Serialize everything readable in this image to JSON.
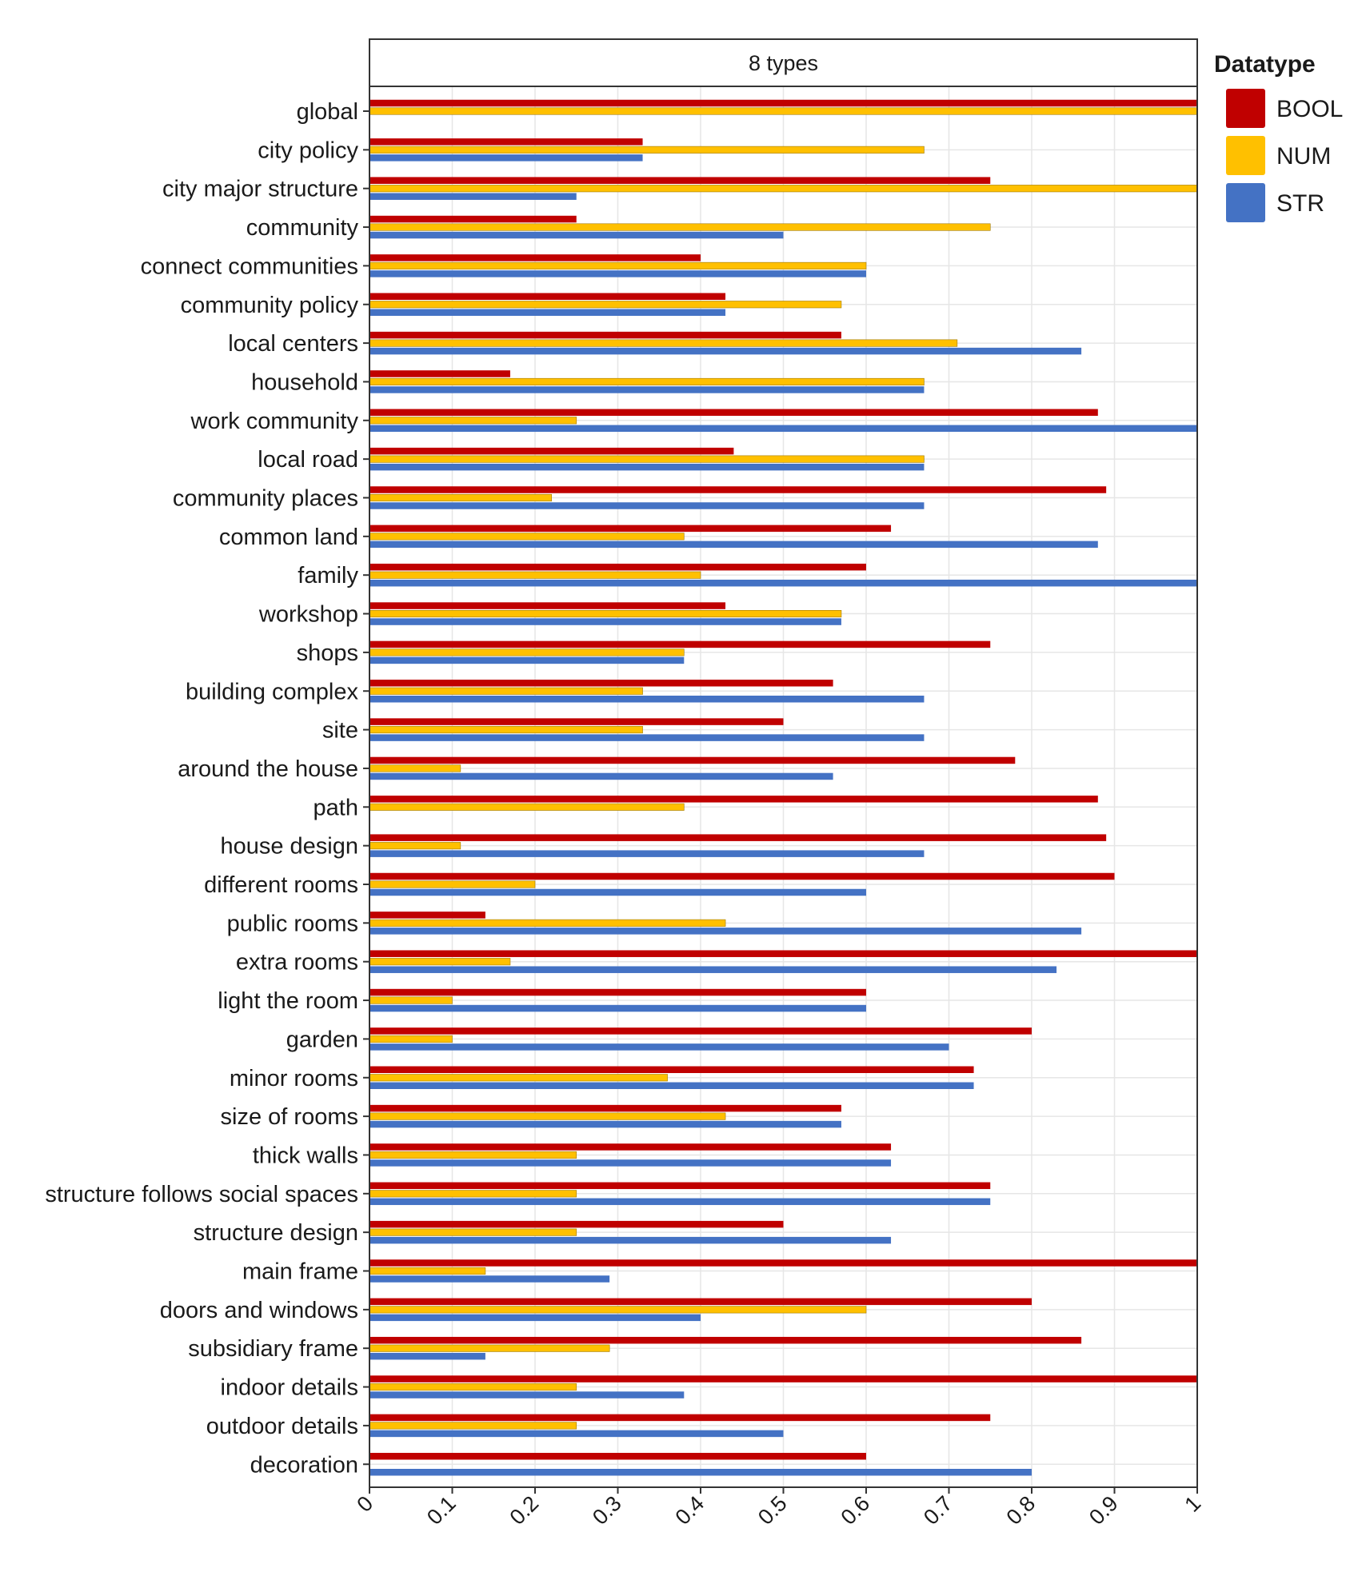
{
  "chart_data": {
    "type": "bar",
    "orientation": "horizontal",
    "panel_title": "8 types",
    "legend_title": "Datatype",
    "legend_position": "right",
    "grid": true,
    "xlim": [
      0,
      1
    ],
    "x_ticks": [
      "0",
      "0.1",
      "0.2",
      "0.3",
      "0.4",
      "0.5",
      "0.6",
      "0.7",
      "0.8",
      "0.9",
      "1"
    ],
    "x_tick_values": [
      0,
      0.1,
      0.2,
      0.3,
      0.4,
      0.5,
      0.6,
      0.7,
      0.8,
      0.9,
      1
    ],
    "categories": [
      "global",
      "city policy",
      "city major structure",
      "community",
      "connect communities",
      "community policy",
      "local centers",
      "household",
      "work community",
      "local road",
      "community places",
      "common land",
      "family",
      "workshop",
      "shops",
      "building complex",
      "site",
      "around the house",
      "path",
      "house design",
      "different rooms",
      "public rooms",
      "extra rooms",
      "light the room",
      "garden",
      "minor rooms",
      "size of rooms",
      "thick walls",
      "structure follows social spaces",
      "structure design",
      "main frame",
      "doors and windows",
      "subsidiary frame",
      "indoor details",
      "outdoor details",
      "decoration"
    ],
    "series": [
      {
        "name": "BOOL",
        "color": "#C00000",
        "values": [
          1,
          0.33,
          0.75,
          0.25,
          0.4,
          0.43,
          0.57,
          0.17,
          0.88,
          0.44,
          0.89,
          0.63,
          0.6,
          0.43,
          0.75,
          0.56,
          0.5,
          0.78,
          0.88,
          0.89,
          0.9,
          0.14,
          1,
          0.6,
          0.8,
          0.73,
          0.57,
          0.63,
          0.75,
          0.5,
          1,
          0.8,
          0.86,
          1,
          0.75,
          0.6
        ]
      },
      {
        "name": "NUM",
        "color": "#FFC000",
        "values": [
          1,
          0.67,
          1,
          0.75,
          0.6,
          0.57,
          0.71,
          0.67,
          0.25,
          0.67,
          0.22,
          0.38,
          0.4,
          0.57,
          0.38,
          0.33,
          0.33,
          0.11,
          0.38,
          0.11,
          0.2,
          0.43,
          0.17,
          0.1,
          0.1,
          0.36,
          0.43,
          0.25,
          0.25,
          0.25,
          0.14,
          0.6,
          0.29,
          0.25,
          0.25,
          null
        ]
      },
      {
        "name": "STR",
        "color": "#4472C4",
        "values": [
          null,
          0.33,
          0.25,
          0.5,
          0.6,
          0.43,
          0.86,
          0.67,
          1,
          0.67,
          0.67,
          0.88,
          1,
          0.57,
          0.38,
          0.67,
          0.67,
          0.56,
          null,
          0.67,
          0.6,
          0.86,
          0.83,
          0.6,
          0.7,
          0.73,
          0.57,
          0.63,
          0.75,
          0.63,
          0.29,
          0.4,
          0.14,
          0.38,
          0.5,
          0.8
        ]
      }
    ]
  }
}
